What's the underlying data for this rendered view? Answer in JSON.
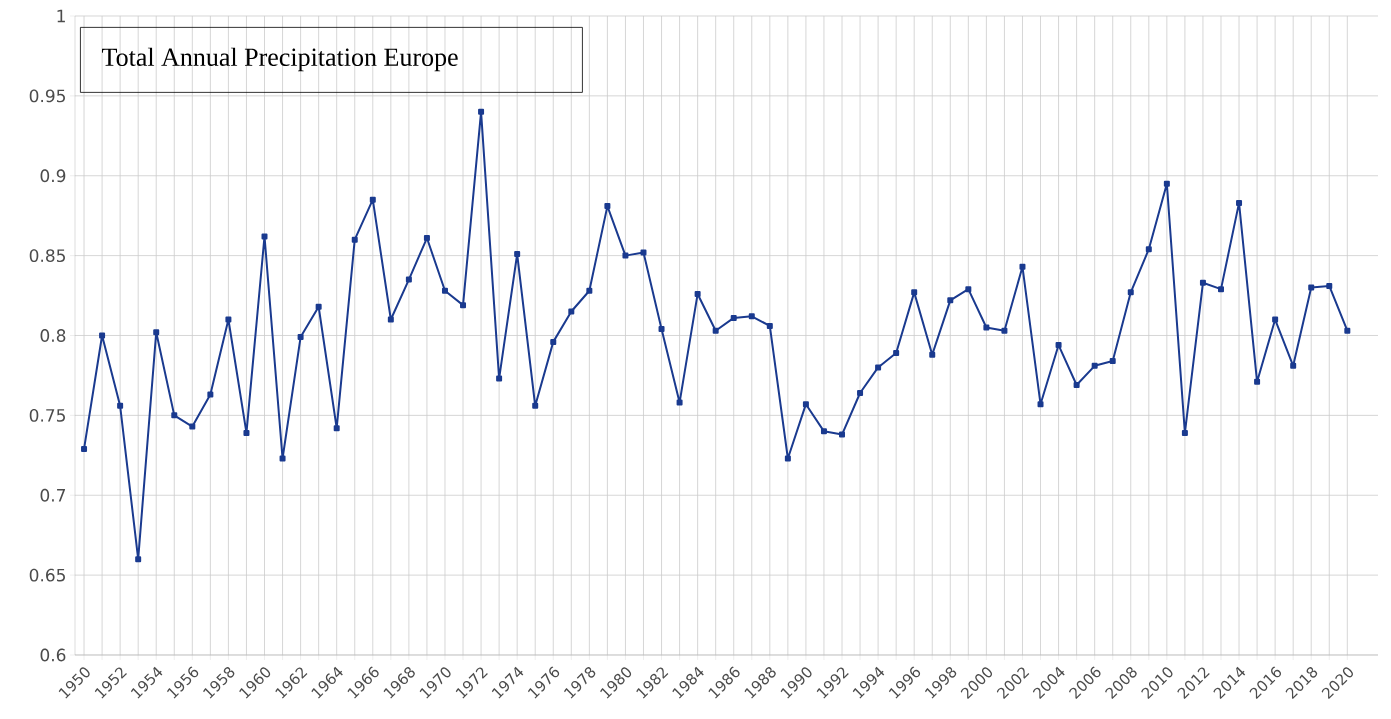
{
  "chart_data": {
    "type": "line",
    "title": "Total Annual Precipitation Europe",
    "x": [
      1950,
      1951,
      1952,
      1953,
      1954,
      1955,
      1956,
      1957,
      1958,
      1959,
      1960,
      1961,
      1962,
      1963,
      1964,
      1965,
      1966,
      1967,
      1968,
      1969,
      1970,
      1971,
      1972,
      1973,
      1974,
      1975,
      1976,
      1977,
      1978,
      1979,
      1980,
      1981,
      1982,
      1983,
      1984,
      1985,
      1986,
      1987,
      1988,
      1989,
      1990,
      1991,
      1992,
      1993,
      1994,
      1995,
      1996,
      1997,
      1998,
      1999,
      2000,
      2001,
      2002,
      2003,
      2004,
      2005,
      2006,
      2007,
      2008,
      2009,
      2010,
      2011,
      2012,
      2013,
      2014,
      2015,
      2016,
      2017,
      2018,
      2019,
      2020
    ],
    "values": [
      0.729,
      0.8,
      0.756,
      0.66,
      0.802,
      0.75,
      0.743,
      0.763,
      0.81,
      0.739,
      0.862,
      0.723,
      0.799,
      0.818,
      0.742,
      0.86,
      0.885,
      0.81,
      0.835,
      0.861,
      0.828,
      0.819,
      0.94,
      0.773,
      0.851,
      0.756,
      0.796,
      0.815,
      0.828,
      0.881,
      0.85,
      0.852,
      0.804,
      0.758,
      0.826,
      0.803,
      0.811,
      0.812,
      0.806,
      0.723,
      0.757,
      0.74,
      0.738,
      0.764,
      0.78,
      0.789,
      0.827,
      0.788,
      0.822,
      0.829,
      0.805,
      0.803,
      0.843,
      0.757,
      0.794,
      0.769,
      0.781,
      0.784,
      0.827,
      0.854,
      0.895,
      0.739,
      0.833,
      0.829,
      0.883,
      0.771,
      0.81,
      0.781,
      0.83,
      0.831,
      0.803
    ],
    "color": "#1a3a8f",
    "marker": "square",
    "line_style": "solid",
    "grid": true,
    "xlim": [
      1949.5,
      2021.7
    ],
    "ylim": [
      0.6,
      1
    ],
    "yticks": [
      0.6,
      0.65,
      0.7,
      0.75,
      0.8,
      0.85,
      0.9,
      0.95,
      1
    ],
    "xticks": [
      1950,
      {
        "value": 1951,
        "label": null
      },
      1952,
      {
        "value": 1953,
        "label": null
      },
      1954,
      {
        "value": 1955,
        "label": null
      },
      1956,
      {
        "value": 1957,
        "label": null
      },
      1958,
      {
        "value": 1959,
        "label": null
      },
      1960,
      {
        "value": 1961,
        "label": null
      },
      1962,
      {
        "value": 1963,
        "label": null
      },
      1964,
      {
        "value": 1965,
        "label": null
      },
      1966,
      {
        "value": 1967,
        "label": null
      },
      1968,
      {
        "value": 1969,
        "label": null
      },
      1970,
      {
        "value": 1971,
        "label": null
      },
      1972,
      {
        "value": 1973,
        "label": null
      },
      1974,
      {
        "value": 1975,
        "label": null
      },
      1976,
      {
        "value": 1977,
        "label": null
      },
      1978,
      {
        "value": 1979,
        "label": null
      },
      1980,
      {
        "value": 1981,
        "label": null
      },
      1982,
      {
        "value": 1983,
        "label": null
      },
      1984,
      {
        "value": 1985,
        "label": null
      },
      1986,
      {
        "value": 1987,
        "label": null
      },
      1988,
      {
        "value": 1989,
        "label": null
      },
      1990,
      {
        "value": 1991,
        "label": null
      },
      1992,
      {
        "value": 1993,
        "label": null
      },
      1994,
      {
        "value": 1995,
        "label": null
      },
      1996,
      {
        "value": 1997,
        "label": null
      },
      1998,
      {
        "value": 1999,
        "label": null
      },
      2000,
      {
        "value": 2001,
        "label": null
      },
      2002,
      {
        "value": 2003,
        "label": null
      },
      2004,
      {
        "value": 2005,
        "label": null
      },
      2006,
      {
        "value": 2007,
        "label": null
      },
      2008,
      {
        "value": 2009,
        "label": null
      },
      2010,
      {
        "value": 2011,
        "label": null
      },
      2012,
      {
        "value": 2013,
        "label": null
      },
      2014,
      {
        "value": 2015,
        "label": null
      },
      2016,
      {
        "value": 2017,
        "label": null
      },
      2018,
      {
        "value": 2019,
        "label": null
      },
      2020
    ]
  }
}
